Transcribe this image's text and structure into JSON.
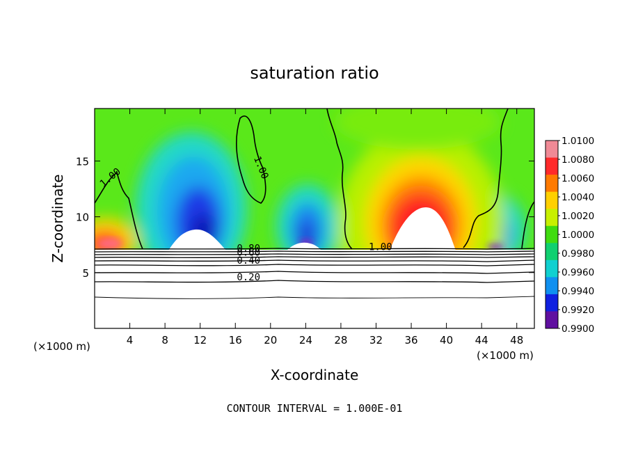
{
  "chart_data": {
    "type": "heatmap",
    "title": "saturation ratio",
    "xlabel": "X-coordinate",
    "ylabel": "Z-coordinate",
    "x_unit": "(×1000 m)",
    "y_unit": "(×1000 m)",
    "xlim": [
      0,
      50
    ],
    "ylim": [
      0,
      19.7
    ],
    "x_ticks": [
      4,
      8,
      12,
      16,
      20,
      24,
      28,
      32,
      36,
      40,
      44,
      48
    ],
    "y_ticks": [
      5,
      10,
      15
    ],
    "footer": "CONTOUR INTERVAL = 1.000E-01",
    "colorbar": {
      "min": 0.99,
      "max": 1.01,
      "tick_labels": [
        "1.0100",
        "1.0080",
        "1.0060",
        "1.0040",
        "1.0020",
        "1.0000",
        "0.9980",
        "0.9960",
        "0.9940",
        "0.9920",
        "0.9900"
      ],
      "colors": [
        "#f08a96",
        "#ff2a2a",
        "#ff7a00",
        "#ffd000",
        "#c8f000",
        "#40dc10",
        "#10d070",
        "#10d0d0",
        "#1090f0",
        "#1020e0",
        "#6010a0"
      ]
    },
    "contour_labels": [
      {
        "text": "1.00",
        "x": 2,
        "y": 13.3
      },
      {
        "text": "1.00",
        "x": 18.6,
        "y": 14.3
      },
      {
        "text": "1.00",
        "x": 32.5,
        "y": 7.0
      },
      {
        "text": "0.80",
        "x": 17.5,
        "y": 6.9
      },
      {
        "text": "0.60",
        "x": 17.5,
        "y": 6.5
      },
      {
        "text": "0.40",
        "x": 17.5,
        "y": 5.8
      },
      {
        "text": "0.20",
        "x": 17.5,
        "y": 4.3
      }
    ],
    "cloud_base_km": 7.3
  }
}
